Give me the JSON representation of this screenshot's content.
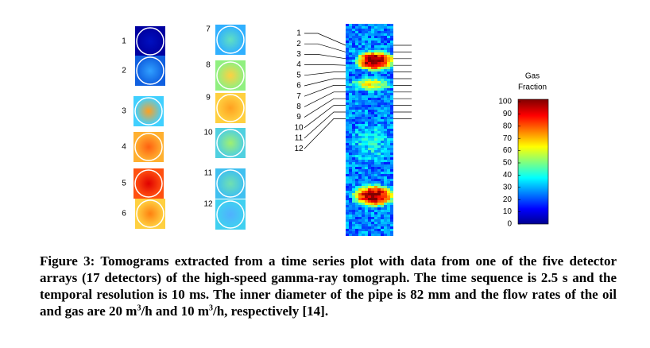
{
  "figure": {
    "tomogram_labels": [
      "1",
      "2",
      "3",
      "4",
      "5",
      "6",
      "7",
      "8",
      "9",
      "10",
      "11",
      "12"
    ],
    "timeseries_labels": [
      "1",
      "2",
      "3",
      "4",
      "5",
      "6",
      "7",
      "8",
      "9",
      "10",
      "11",
      "12"
    ],
    "colorbar": {
      "title": [
        "Gas",
        "Fraction"
      ],
      "ticks": [
        100,
        90,
        80,
        70,
        60,
        50,
        40,
        30,
        20,
        10,
        0
      ]
    },
    "caption": [
      "Figure 3: Tomograms extracted from a time series plot with data from one of the five detector arrays (17 detectors) of the high-speed gamma-ray tomograph. The time sequence is 2.5 s and the temporal resolution is 10 ms. The inner diameter of the pipe is 82 mm and the flow rates of the oil and gas are 20 m",
      "3",
      "/h and 10 m",
      "3",
      "/h, respectively [14]."
    ]
  }
}
